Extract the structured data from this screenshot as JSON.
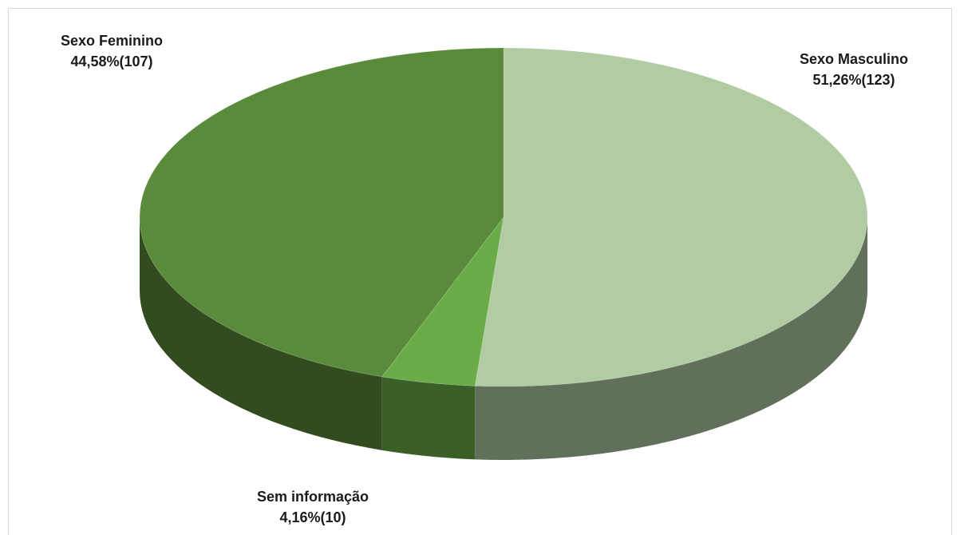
{
  "chart_data": {
    "type": "pie",
    "categories": [
      "Sexo Masculino",
      "Sem informação",
      "Sexo Feminino"
    ],
    "values": [
      123,
      10,
      107
    ],
    "value_labels": [
      "51,26%(123)",
      "4,16%(10)",
      "44,58%(107)"
    ],
    "colors": [
      "#b1cca3",
      "#6aac47",
      "#5a8b3a"
    ]
  }
}
